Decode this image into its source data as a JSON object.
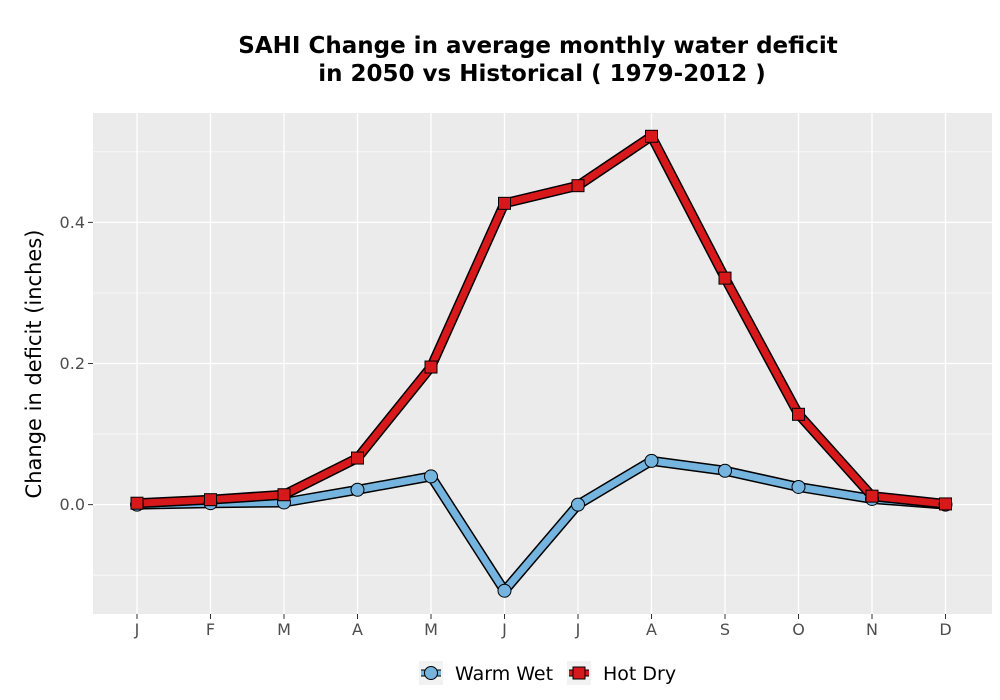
{
  "chart_data": {
    "type": "line",
    "title_line1": "SAHI  Change in average monthly water deficit",
    "title_line2": "in 2050 vs Historical ( 1979-2012 )",
    "xlabel": "",
    "ylabel": "Change in deficit (inches)",
    "categories": [
      "J",
      "F",
      "M",
      "A",
      "M",
      "J",
      "J",
      "A",
      "S",
      "O",
      "N",
      "D"
    ],
    "yticks": [
      0.0,
      0.2,
      0.4
    ],
    "ytick_labels": [
      "0.0",
      "0.2",
      "0.4"
    ],
    "ylim": [
      -0.155,
      0.555
    ],
    "grid": true,
    "legend_position": "bottom",
    "series": [
      {
        "name": "Warm Wet",
        "color": "#74b4df",
        "marker": "circle",
        "values": [
          0.0,
          0.002,
          0.003,
          0.021,
          0.04,
          -0.122,
          0.0,
          0.062,
          0.048,
          0.025,
          0.008,
          0.0
        ]
      },
      {
        "name": "Hot Dry",
        "color": "#d7191c",
        "marker": "square",
        "values": [
          0.002,
          0.007,
          0.014,
          0.066,
          0.195,
          0.427,
          0.452,
          0.522,
          0.321,
          0.128,
          0.012,
          0.001
        ]
      }
    ]
  }
}
